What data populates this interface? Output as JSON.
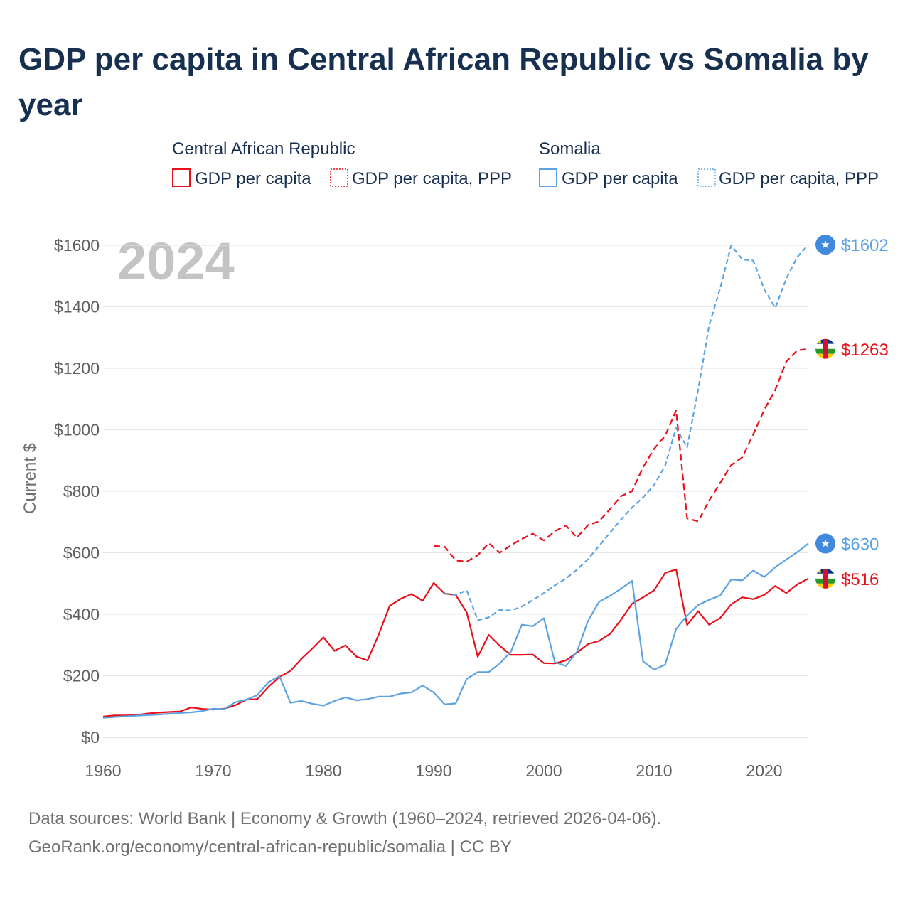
{
  "chart_data": {
    "type": "line",
    "title": "GDP per capita in Central African Republic vs Somalia by year",
    "year_label": "2024",
    "xlabel": "",
    "ylabel": "Current $",
    "xlim": [
      1960,
      2024
    ],
    "ylim": [
      0,
      1650
    ],
    "x_ticks": [
      1960,
      1970,
      1980,
      1990,
      2000,
      2010,
      2020
    ],
    "y_ticks": [
      0,
      200,
      400,
      600,
      800,
      1000,
      1200,
      1400,
      1600
    ],
    "y_tick_labels": [
      "$0",
      "$200",
      "$400",
      "$600",
      "$800",
      "$1000",
      "$1200",
      "$1400",
      "$1600"
    ],
    "grid": true,
    "colors": {
      "car": "#e8101a",
      "somalia": "#5ba3e3",
      "grid": "#e6e6e6",
      "axis_text": "#606060",
      "title": "#18304f"
    },
    "legend": {
      "placement": "top",
      "groups": [
        {
          "country": "Central African Republic",
          "items": [
            "GDP per capita",
            "GDP per capita, PPP"
          ]
        },
        {
          "country": "Somalia",
          "items": [
            "GDP per capita",
            "GDP per capita, PPP"
          ]
        }
      ]
    },
    "series": [
      {
        "name": "Central African Republic GDP per capita",
        "color": "#e8101a",
        "dash": "solid",
        "end_label": "$516",
        "x": [
          1960,
          1961,
          1962,
          1963,
          1964,
          1965,
          1966,
          1967,
          1968,
          1969,
          1970,
          1971,
          1972,
          1973,
          1974,
          1975,
          1976,
          1977,
          1978,
          1979,
          1980,
          1981,
          1982,
          1983,
          1984,
          1985,
          1986,
          1987,
          1988,
          1989,
          1990,
          1991,
          1992,
          1993,
          1994,
          1995,
          1996,
          1997,
          1998,
          1999,
          2000,
          2001,
          2002,
          2003,
          2004,
          2005,
          2006,
          2007,
          2008,
          2009,
          2010,
          2011,
          2012,
          2013,
          2014,
          2015,
          2016,
          2017,
          2018,
          2019,
          2020,
          2021,
          2022,
          2023,
          2024
        ],
        "values": [
          67,
          71,
          71,
          72,
          77,
          80,
          82,
          84,
          97,
          92,
          90,
          93,
          104,
          122,
          124,
          164,
          196,
          216,
          255,
          289,
          325,
          281,
          299,
          262,
          250,
          333,
          427,
          450,
          466,
          444,
          502,
          467,
          463,
          406,
          262,
          333,
          297,
          268,
          268,
          269,
          241,
          240,
          250,
          275,
          303,
          313,
          336,
          382,
          434,
          455,
          478,
          534,
          546,
          365,
          410,
          366,
          388,
          432,
          455,
          449,
          463,
          492,
          469,
          497,
          516
        ]
      },
      {
        "name": "Central African Republic GDP per capita, PPP",
        "color": "#e8101a",
        "dash": "dashed",
        "end_label": "$1263",
        "x": [
          1990,
          1991,
          1992,
          1993,
          1994,
          1995,
          1996,
          1997,
          1998,
          1999,
          2000,
          2001,
          2002,
          2003,
          2004,
          2005,
          2006,
          2007,
          2008,
          2009,
          2010,
          2011,
          2012,
          2013,
          2014,
          2015,
          2016,
          2017,
          2018,
          2019,
          2020,
          2021,
          2022,
          2023,
          2024
        ],
        "values": [
          622,
          620,
          575,
          571,
          592,
          631,
          600,
          624,
          645,
          662,
          640,
          670,
          689,
          649,
          690,
          702,
          742,
          784,
          800,
          878,
          938,
          980,
          1063,
          712,
          702,
          770,
          827,
          885,
          910,
          985,
          1065,
          1130,
          1222,
          1258,
          1263
        ]
      },
      {
        "name": "Somalia GDP per capita",
        "color": "#5ba3e3",
        "dash": "solid",
        "end_label": "$630",
        "x": [
          1960,
          1961,
          1962,
          1963,
          1964,
          1965,
          1966,
          1967,
          1968,
          1969,
          1970,
          1971,
          1972,
          1973,
          1974,
          1975,
          1976,
          1977,
          1978,
          1979,
          1980,
          1981,
          1982,
          1983,
          1984,
          1985,
          1986,
          1987,
          1988,
          1989,
          1990,
          1991,
          1992,
          1993,
          1994,
          1995,
          1996,
          1997,
          1998,
          1999,
          2000,
          2001,
          2002,
          2003,
          2004,
          2005,
          2006,
          2007,
          2008,
          2009,
          2010,
          2011,
          2012,
          2013,
          2014,
          2015,
          2016,
          2017,
          2018,
          2019,
          2020,
          2021,
          2022,
          2023,
          2024
        ],
        "values": [
          63,
          66,
          68,
          70,
          72,
          74,
          76,
          79,
          81,
          85,
          93,
          91,
          114,
          122,
          137,
          179,
          199,
          112,
          118,
          109,
          103,
          118,
          130,
          120,
          124,
          132,
          132,
          142,
          146,
          168,
          146,
          107,
          110,
          190,
          212,
          212,
          240,
          278,
          366,
          361,
          387,
          244,
          232,
          278,
          378,
          440,
          460,
          483,
          509,
          247,
          220,
          236,
          352,
          396,
          430,
          447,
          461,
          513,
          510,
          542,
          521,
          553,
          578,
          602,
          630
        ]
      },
      {
        "name": "Somalia GDP per capita, PPP",
        "color": "#5ba3e3",
        "dash": "dotted",
        "end_label": "$1602",
        "x": [
          1991,
          1992,
          1993,
          1994,
          1995,
          1996,
          1997,
          1998,
          1999,
          2000,
          2001,
          2002,
          2003,
          2004,
          2005,
          2006,
          2007,
          2008,
          2009,
          2010,
          2011,
          2012,
          2013,
          2014,
          2015,
          2016,
          2017,
          2018,
          2019,
          2020,
          2021,
          2022,
          2023,
          2024
        ],
        "values": [
          468,
          463,
          478,
          380,
          390,
          414,
          412,
          425,
          446,
          469,
          494,
          516,
          545,
          579,
          622,
          665,
          708,
          747,
          780,
          820,
          883,
          1006,
          943,
          1130,
          1340,
          1460,
          1600,
          1554,
          1550,
          1456,
          1396,
          1492,
          1562,
          1602
        ]
      }
    ]
  },
  "footer": {
    "line1": "Data sources: World Bank | Economy & Growth (1960–2024, retrieved 2026-04-06).",
    "line2": "GeoRank.org/economy/central-african-republic/somalia | CC BY"
  }
}
